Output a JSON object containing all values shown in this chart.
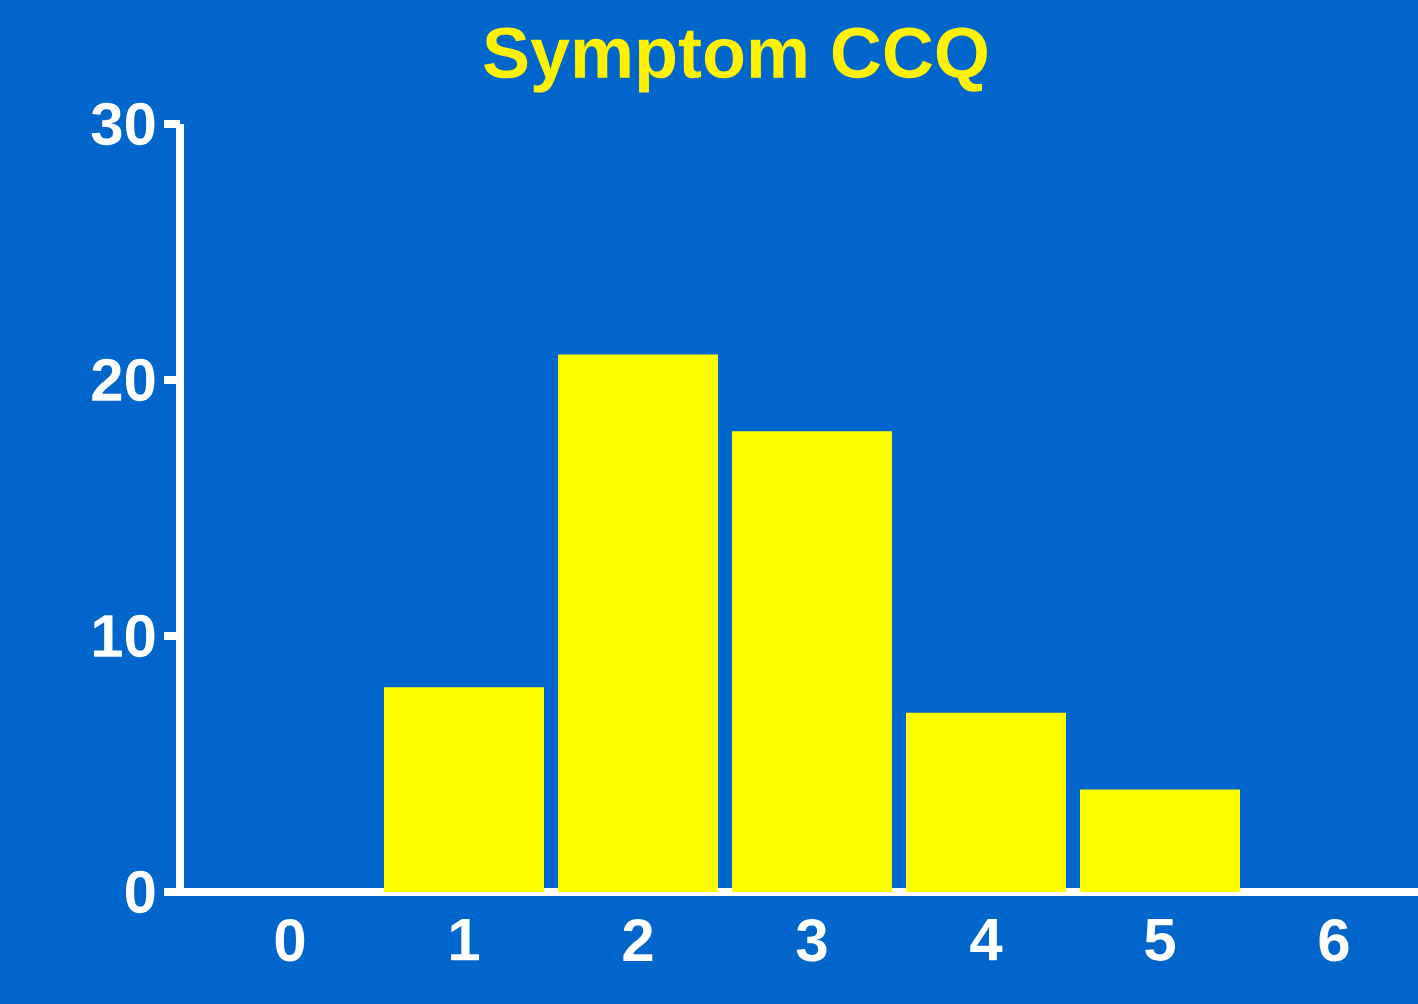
{
  "chart_data": {
    "type": "bar",
    "title": "Symptom CCQ",
    "categories": [
      "0",
      "1",
      "2",
      "3",
      "4",
      "5",
      "6"
    ],
    "values": [
      0,
      8,
      21,
      18,
      7,
      4,
      0
    ],
    "color": "#ffff00",
    "ylim": [
      0,
      30
    ],
    "yticks": [
      0,
      10,
      20,
      30
    ],
    "grid": false
  }
}
